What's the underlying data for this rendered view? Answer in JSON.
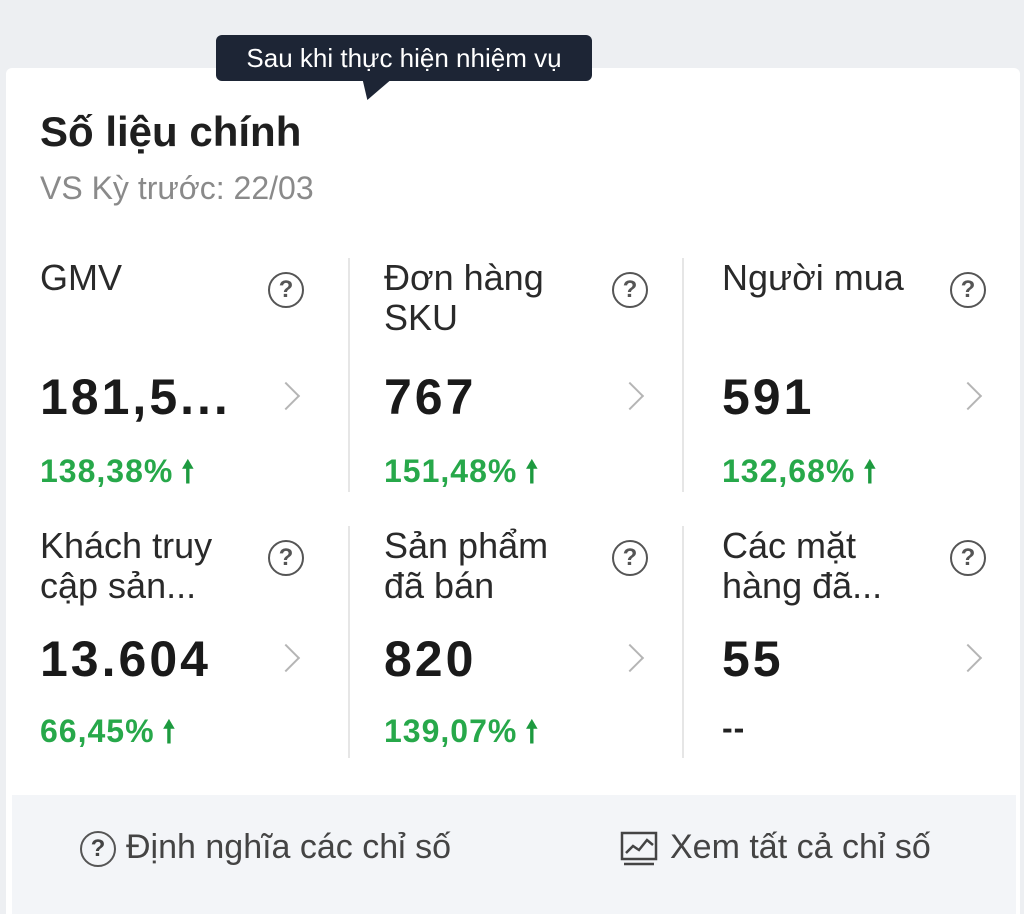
{
  "tooltip": {
    "text": "Sau khi thực hiện nhiệm vụ"
  },
  "header": {
    "title": "Số liệu chính",
    "subtitle": "VS Kỳ trước: 22/03"
  },
  "metrics": [
    {
      "label": "GMV",
      "value": "181,5...",
      "change": "138,38%",
      "trend": "up"
    },
    {
      "label": "Đơn hàng SKU",
      "value": "767",
      "change": "151,48%",
      "trend": "up"
    },
    {
      "label": "Người mua",
      "value": "591",
      "change": "132,68%",
      "trend": "up"
    },
    {
      "label": "Khách truy cập sản...",
      "value": "13.604",
      "change": "66,45%",
      "trend": "up"
    },
    {
      "label": "Sản phẩm đã bán",
      "value": "820",
      "change": "139,07%",
      "trend": "up"
    },
    {
      "label": "Các mặt hàng đã...",
      "value": "55",
      "change": "--",
      "trend": "none"
    }
  ],
  "footer": {
    "definitions_label": "Định nghĩa các chỉ số",
    "view_all_label": "Xem tất cả chỉ số"
  },
  "icons": {
    "help": "question-circle-icon",
    "chevron": "chevron-right-icon",
    "trend_up": "arrow-up-icon",
    "chart": "line-chart-icon"
  },
  "colors": {
    "positive": "#27a84a",
    "tooltip_bg": "#1d2535"
  }
}
